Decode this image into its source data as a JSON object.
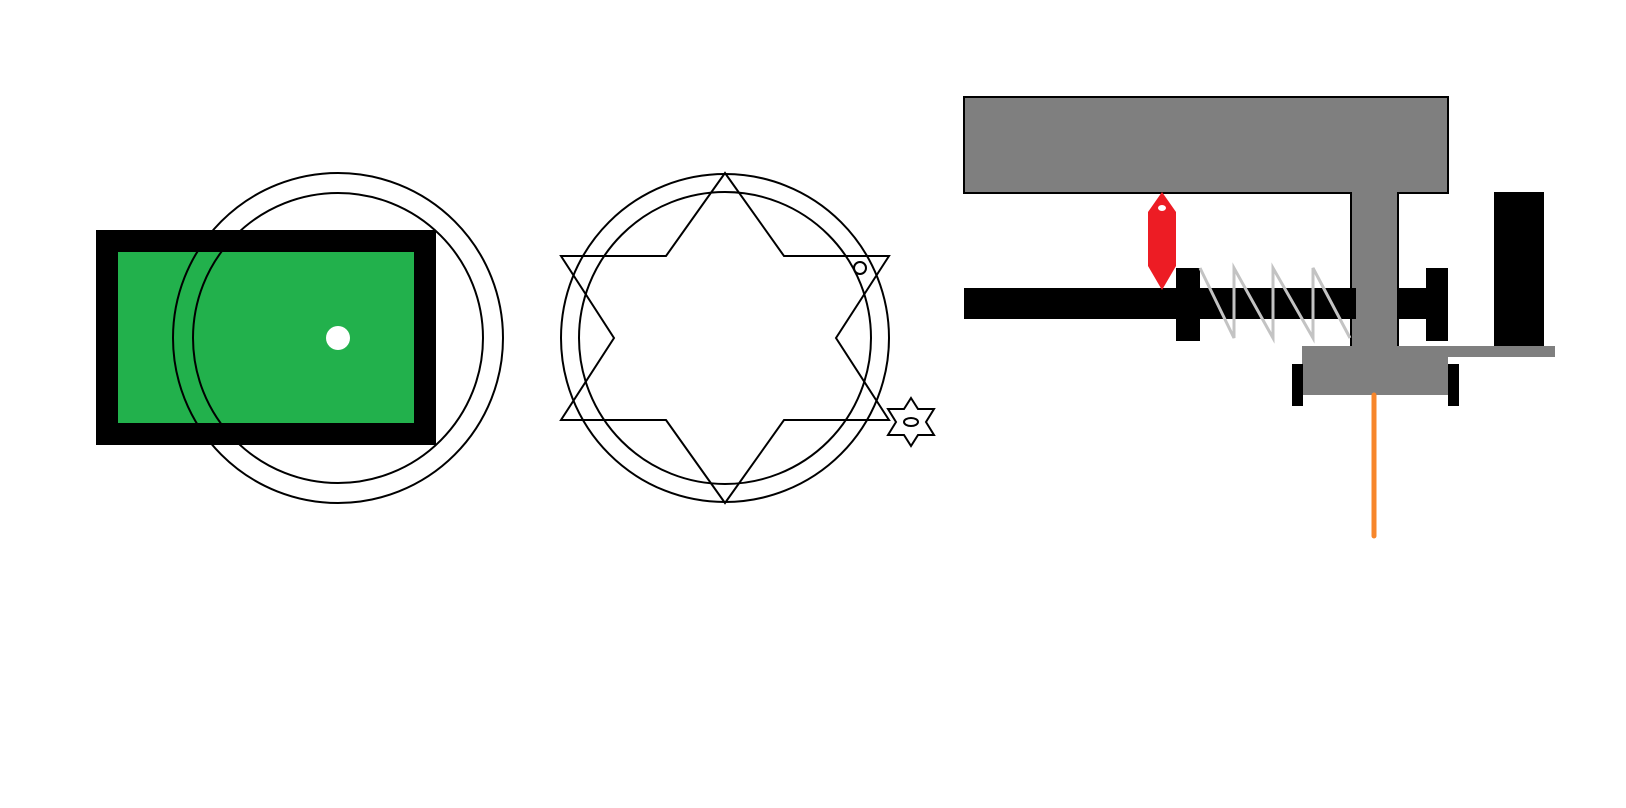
{
  "colors": {
    "background": "#ffffff",
    "stroke": "#000000",
    "green": "#22b14c",
    "white": "#ffffff",
    "gray": "#7f7f7f",
    "spring": "#c3c3c3",
    "red": "#ed1c24",
    "orange": "#f7862b"
  },
  "components": {
    "left": "green-rectangle-with-double-circle",
    "middle": "star-of-david-with-double-circle-and-small-star",
    "right": "gray-t-bracket-with-spring-rod"
  }
}
